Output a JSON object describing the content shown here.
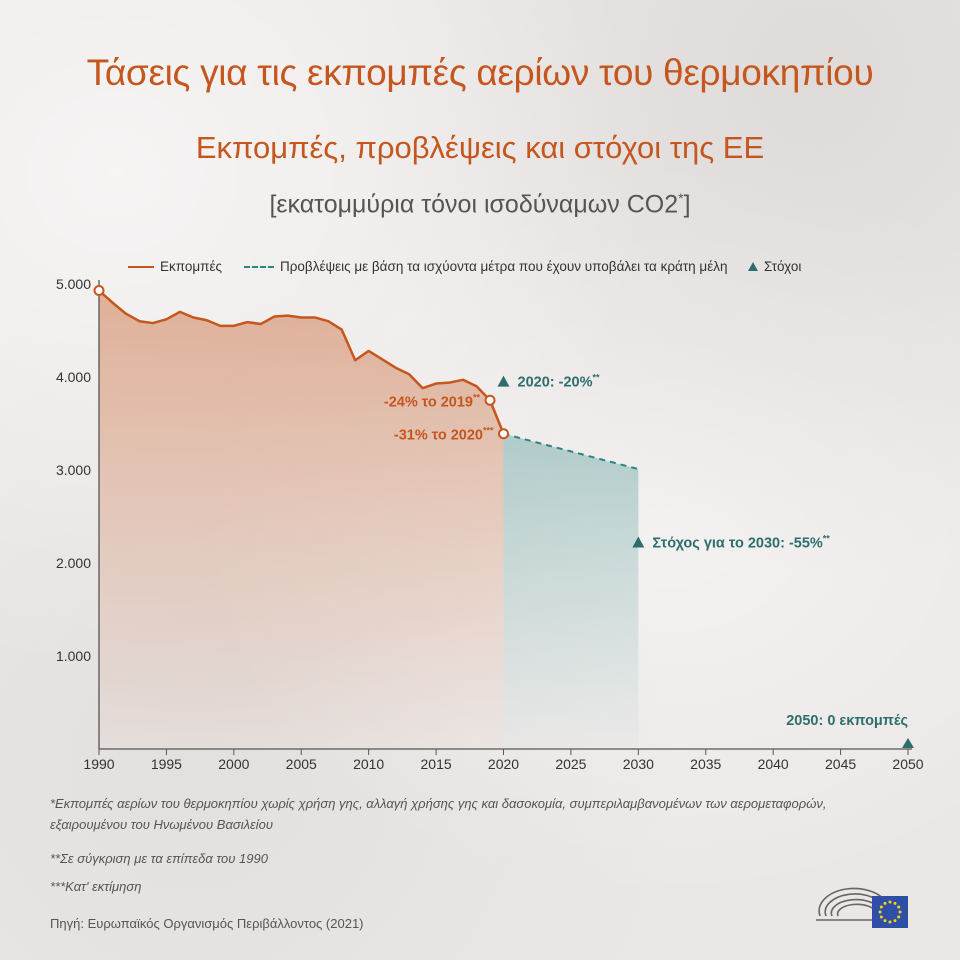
{
  "title": "Τάσεις για τις εκπομπές αερίων του θερμοκηπίου",
  "subtitle": "Εκπομπές, προβλέψεις και στόχοι της ΕΕ",
  "unit_main": "[εκατομμύρια τόνοι ισοδύναμων CO2",
  "unit_sup": "*",
  "unit_close": "]",
  "legend": {
    "emissions": "Εκπομπές",
    "projections": "Προβλέψεις με βάση τα ισχύοντα μέτρα που έχουν υποβάλει τα κράτη μέλη",
    "targets": "Στόχοι"
  },
  "colors": {
    "emissions": "#c4561e",
    "projections": "#2d8580",
    "targets": "#2c6e6c"
  },
  "chart_data": {
    "type": "line",
    "title": "",
    "xlabel": "",
    "ylabel": "",
    "xlim": [
      1990,
      2050
    ],
    "ylim": [
      0,
      5000
    ],
    "grid": false,
    "legend_position": "top",
    "y_ticks": [
      {
        "value": 1000,
        "label": "1.000"
      },
      {
        "value": 2000,
        "label": "2.000"
      },
      {
        "value": 3000,
        "label": "3.000"
      },
      {
        "value": 4000,
        "label": "4.000"
      },
      {
        "value": 5000,
        "label": "5.000"
      }
    ],
    "x_ticks": [
      "1990",
      "1995",
      "2000",
      "2005",
      "2010",
      "2015",
      "2020",
      "2025",
      "2030",
      "2035",
      "2040",
      "2045",
      "2050"
    ],
    "series": [
      {
        "name": "Εκπομπές",
        "x": [
          1990,
          1991,
          1992,
          1993,
          1994,
          1995,
          1996,
          1997,
          1998,
          1999,
          2000,
          2001,
          2002,
          2003,
          2004,
          2005,
          2006,
          2007,
          2008,
          2009,
          2010,
          2011,
          2012,
          2013,
          2014,
          2015,
          2016,
          2017,
          2018,
          2019,
          2020
        ],
        "values": [
          4930,
          4800,
          4680,
          4600,
          4580,
          4620,
          4700,
          4640,
          4610,
          4550,
          4550,
          4590,
          4570,
          4650,
          4660,
          4640,
          4640,
          4600,
          4510,
          4180,
          4280,
          4190,
          4100,
          4030,
          3880,
          3930,
          3940,
          3970,
          3900,
          3750,
          3390
        ]
      },
      {
        "name": "Προβλέψεις με βάση τα ισχύοντα μέτρα που έχουν υποβάλει τα κράτη μέλη",
        "x": [
          2020,
          2030
        ],
        "values": [
          3390,
          3010
        ]
      }
    ],
    "targets": [
      {
        "year": 2020,
        "value": 3950,
        "label": "2020: -20%",
        "sup": "**"
      },
      {
        "year": 2030,
        "value": 2220,
        "label": "Στόχος για το 2030: -55%",
        "sup": "**"
      },
      {
        "year": 2050,
        "value": 0,
        "label": "2050: 0 εκπομπές",
        "sup": ""
      }
    ],
    "annotations": [
      {
        "year": 2019,
        "value": 3750,
        "label": "-24% το 2019",
        "sup": "**"
      },
      {
        "year": 2020,
        "value": 3390,
        "label": "-31% το 2020",
        "sup": "***"
      }
    ]
  },
  "footnotes": {
    "f1": "*Εκπομπές αερίων του θερμοκηπίου χωρίς χρήση γης, αλλαγή χρήσης γης και δασοκομία, συμπεριλαμβανομένων των αερομεταφορών, εξαιρουμένου του Ηνωμένου Βασιλείου",
    "f2": "**Σε σύγκριση με τα επίπεδα του 1990",
    "f3": "***Κατ' εκτίμηση"
  },
  "source": "Πηγή: Ευρωπαϊκός Οργανισμός Περιβάλλοντος (2021)"
}
